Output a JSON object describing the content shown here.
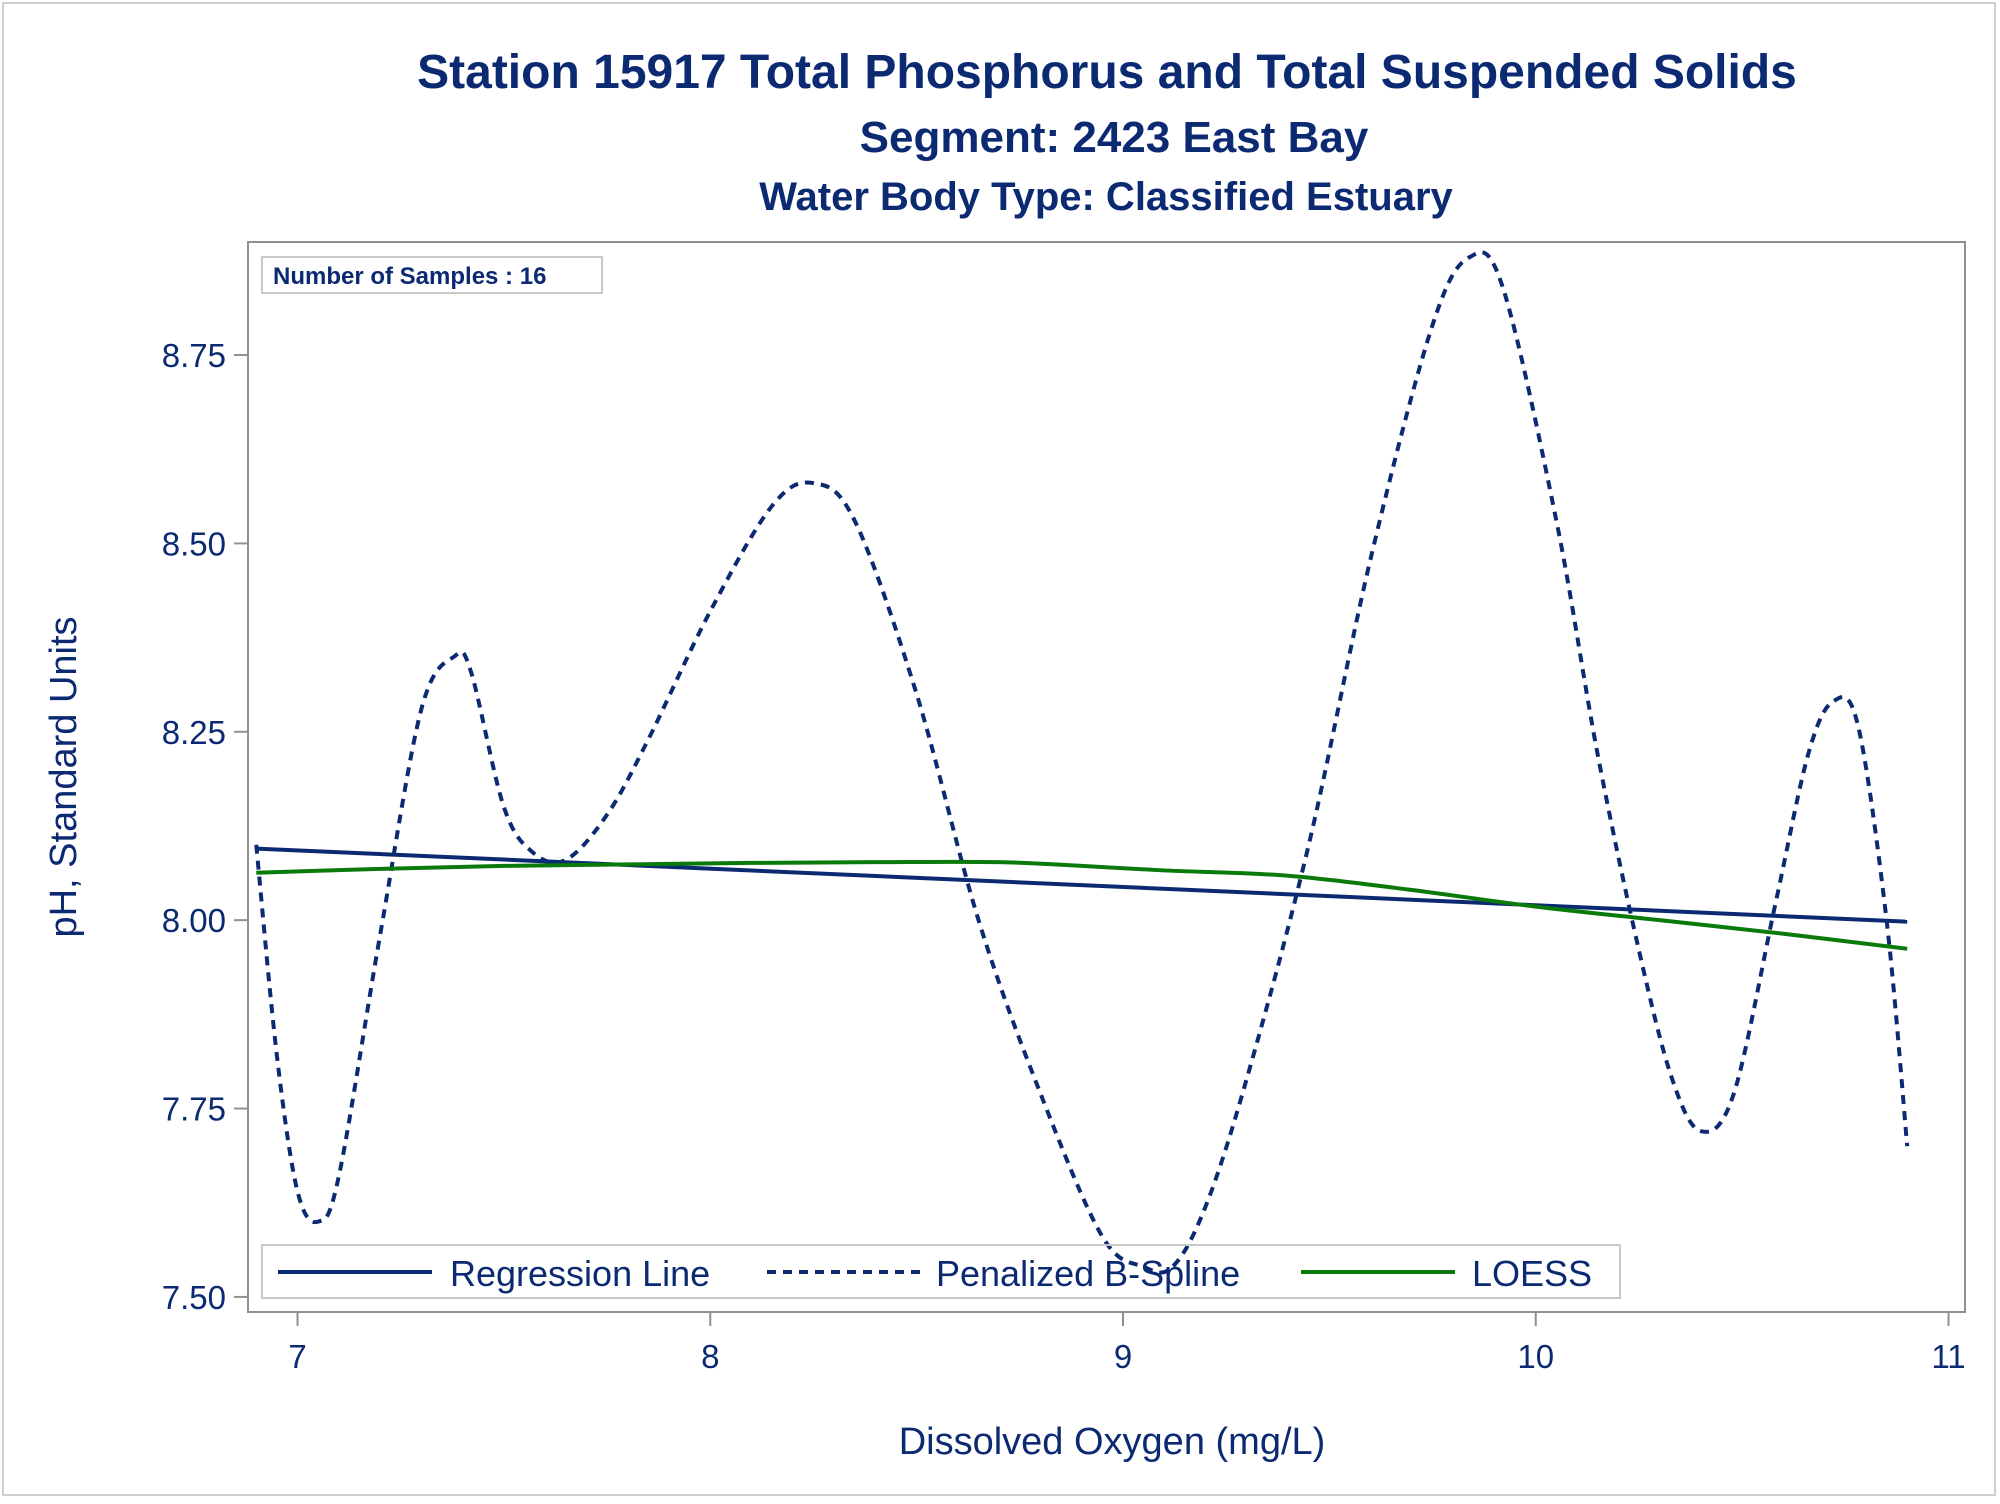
{
  "chart_data": {
    "type": "line",
    "title": "Station 15917  Total Phosphorus and Total Suspended Solids",
    "subtitle": "Segment: 2423  East Bay",
    "subtitle2": "Water Body Type: Classified Estuary",
    "xlabel": "Dissolved Oxygen (mg/L)",
    "ylabel": "pH, Standard Units",
    "xlim": [
      6.88,
      11.04
    ],
    "ylim": [
      7.48,
      8.9
    ],
    "xticks": [
      7,
      8,
      9,
      10,
      11
    ],
    "xtick_labels": [
      "7",
      "8",
      "9",
      "10",
      "11"
    ],
    "yticks": [
      7.5,
      7.75,
      8.0,
      8.25,
      8.5,
      8.75
    ],
    "ytick_labels": [
      "7.50",
      "7.75",
      "8.00",
      "8.25",
      "8.50",
      "8.75"
    ],
    "grid": false,
    "legend_position": "bottom-inside",
    "inset_text": "Number of Samples : 16",
    "series": [
      {
        "name": "Regression Line",
        "style": "solid",
        "color": "#0b2a72",
        "x": [
          6.9,
          10.9
        ],
        "y": [
          8.095,
          7.998
        ]
      },
      {
        "name": "Penalized B-Spline",
        "style": "dashed",
        "color": "#0b2a72",
        "x": [
          6.9,
          6.95,
          7.0,
          7.05,
          7.1,
          7.2,
          7.3,
          7.38,
          7.42,
          7.5,
          7.57,
          7.65,
          7.75,
          7.85,
          8.0,
          8.15,
          8.25,
          8.35,
          8.5,
          8.65,
          8.8,
          8.95,
          9.05,
          9.12,
          9.2,
          9.3,
          9.45,
          9.6,
          9.75,
          9.84,
          9.92,
          10.05,
          10.15,
          10.25,
          10.33,
          10.4,
          10.48,
          10.58,
          10.66,
          10.72,
          10.78,
          10.85,
          10.9
        ],
        "y": [
          8.1,
          7.82,
          7.64,
          7.6,
          7.66,
          7.98,
          8.28,
          8.35,
          8.33,
          8.15,
          8.09,
          8.08,
          8.14,
          8.24,
          8.41,
          8.55,
          8.58,
          8.53,
          8.3,
          8.0,
          7.77,
          7.58,
          7.54,
          7.54,
          7.62,
          7.79,
          8.1,
          8.48,
          8.79,
          8.88,
          8.84,
          8.53,
          8.22,
          7.96,
          7.79,
          7.72,
          7.77,
          8.02,
          8.22,
          8.29,
          8.26,
          8.0,
          7.7
        ]
      },
      {
        "name": "LOESS",
        "style": "solid",
        "color": "#0a7a0a",
        "x": [
          6.9,
          7.2,
          7.5,
          7.8,
          8.1,
          8.4,
          8.7,
          8.9,
          9.1,
          9.4,
          9.7,
          10.0,
          10.3,
          10.6,
          10.9
        ],
        "y": [
          8.063,
          8.068,
          8.072,
          8.074,
          8.076,
          8.077,
          8.077,
          8.072,
          8.066,
          8.059,
          8.04,
          8.018,
          8.0,
          7.982,
          7.962
        ]
      }
    ]
  }
}
